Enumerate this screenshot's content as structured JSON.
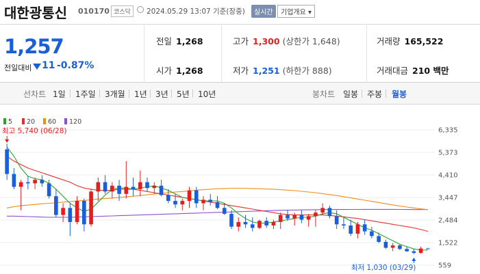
{
  "header": {
    "name": "대한광통신",
    "code": "010170",
    "market": "코스닥",
    "datetime": "2024.05.29 13:07 기준(장중)",
    "realtime": "실시간",
    "company_info": "기업개요 ▾"
  },
  "quote": {
    "price": "1,257",
    "change_label": "전일대비",
    "change_abs": "11",
    "change_pct": "-0.87%",
    "prev_close_label": "전일",
    "prev_close": "1,268",
    "open_label": "시가",
    "open": "1,268",
    "high_label": "고가",
    "high": "1,300",
    "high_sub": "(상한가 1,648)",
    "low_label": "저가",
    "low": "1,251",
    "low_sub": "(하한가 888)",
    "volume_label": "거래량",
    "volume": "165,522",
    "amount_label": "거래대금",
    "amount": "210 백만"
  },
  "tabs": {
    "line_label": "선차트",
    "line": [
      "1일",
      "1주일",
      "3개월",
      "1년",
      "3년",
      "5년",
      "10년"
    ],
    "candle_label": "봉차트",
    "candle": [
      "일봉",
      "주봉",
      "월봉"
    ],
    "active": "월봉"
  },
  "colors": {
    "up": "#e02020",
    "down": "#1a5fd8",
    "ma5": "#2ca02c",
    "ma20": "#e03030",
    "ma60": "#ef8c1e",
    "ma120": "#8c4fd0"
  },
  "chart_data": {
    "type": "candlestick",
    "legend": [
      {
        "name": "5",
        "color": "#2ca02c"
      },
      {
        "name": "20",
        "color": "#e03030"
      },
      {
        "name": "60",
        "color": "#ef8c1e"
      },
      {
        "name": "120",
        "color": "#8c4fd0"
      }
    ],
    "y_ticks": [
      "6,335",
      "5,373",
      "4,410",
      "3,447",
      "2,484",
      "1,522",
      "559"
    ],
    "ylim": [
      559,
      6335
    ],
    "annotation_high": "최고 5,740 (06/28)",
    "annotation_low": "최저 1,030 (03/29)",
    "candles": [
      [
        5500,
        5740,
        4200,
        4450
      ],
      [
        4450,
        4700,
        3800,
        3900
      ],
      [
        3900,
        4200,
        2900,
        4100
      ],
      [
        4100,
        4350,
        3800,
        4050
      ],
      [
        4050,
        4300,
        3800,
        4200
      ],
      [
        4200,
        4400,
        3900,
        4050
      ],
      [
        4050,
        4200,
        3400,
        3500
      ],
      [
        3500,
        3800,
        2600,
        2700
      ],
      [
        2700,
        3200,
        2400,
        3000
      ],
      [
        3000,
        3200,
        1800,
        2400
      ],
      [
        2400,
        3500,
        2300,
        3300
      ],
      [
        3300,
        3400,
        2000,
        2300
      ],
      [
        2300,
        3800,
        2200,
        3700
      ],
      [
        3700,
        4300,
        3300,
        4100
      ],
      [
        4100,
        4400,
        3600,
        3700
      ],
      [
        3700,
        4100,
        3400,
        3950
      ],
      [
        3950,
        4200,
        3300,
        3600
      ],
      [
        3600,
        5000,
        3400,
        3900
      ],
      [
        3900,
        4300,
        3500,
        3800
      ],
      [
        3800,
        4600,
        3500,
        4100
      ],
      [
        4100,
        4300,
        3700,
        3850
      ],
      [
        3850,
        4100,
        3600,
        3950
      ],
      [
        3950,
        4200,
        3500,
        3550
      ],
      [
        3550,
        3800,
        3200,
        3300
      ],
      [
        3300,
        3600,
        3000,
        3150
      ],
      [
        3150,
        3400,
        2900,
        3300
      ],
      [
        3300,
        3900,
        3000,
        3750
      ],
      [
        3750,
        3900,
        3000,
        3200
      ],
      [
        3200,
        3500,
        2900,
        3350
      ],
      [
        3350,
        3600,
        3100,
        3250
      ],
      [
        3250,
        3500,
        2950,
        3000
      ],
      [
        3000,
        3200,
        2700,
        2750
      ],
      [
        2750,
        2900,
        2100,
        2200
      ],
      [
        2200,
        2600,
        2000,
        2400
      ],
      [
        2400,
        2700,
        2150,
        2300
      ],
      [
        2300,
        2600,
        2000,
        2150
      ],
      [
        2150,
        2500,
        2100,
        2450
      ],
      [
        2450,
        2600,
        2150,
        2250
      ],
      [
        2250,
        2500,
        2100,
        2400
      ],
      [
        2400,
        2800,
        2100,
        2700
      ],
      [
        2700,
        2900,
        2450,
        2550
      ],
      [
        2550,
        2800,
        2250,
        2700
      ],
      [
        2700,
        2900,
        2350,
        2500
      ],
      [
        2500,
        2750,
        2200,
        2650
      ],
      [
        2650,
        2900,
        2200,
        2800
      ],
      [
        2800,
        3200,
        2700,
        3000
      ],
      [
        3000,
        3100,
        2550,
        2650
      ],
      [
        2650,
        2900,
        2100,
        2300
      ],
      [
        2300,
        2600,
        2100,
        2250
      ],
      [
        2250,
        2500,
        1800,
        1900
      ],
      [
        1900,
        2400,
        1700,
        2300
      ],
      [
        2300,
        2500,
        1850,
        2000
      ],
      [
        2000,
        2200,
        1700,
        1800
      ],
      [
        1800,
        1950,
        1500,
        1550
      ],
      [
        1550,
        1650,
        1250,
        1300
      ],
      [
        1300,
        1500,
        1150,
        1400
      ],
      [
        1400,
        1450,
        1200,
        1250
      ],
      [
        1250,
        1350,
        1120,
        1150
      ],
      [
        1150,
        1250,
        1030,
        1080
      ],
      [
        1080,
        1350,
        1050,
        1268
      ],
      [
        1268,
        1300,
        1251,
        1257
      ]
    ],
    "ma5": [
      5600,
      5200,
      4700,
      4350,
      4250,
      4200,
      4050,
      3800,
      3500,
      3200,
      3000,
      2850,
      2950,
      3250,
      3550,
      3800,
      3850,
      3850,
      3800,
      3850,
      3900,
      3950,
      3850,
      3750,
      3600,
      3450,
      3400,
      3350,
      3300,
      3300,
      3300,
      3200,
      3000,
      2750,
      2550,
      2400,
      2350,
      2350,
      2400,
      2450,
      2500,
      2550,
      2600,
      2600,
      2650,
      2750,
      2800,
      2750,
      2600,
      2450,
      2300,
      2150,
      2050,
      1900,
      1750,
      1600,
      1450,
      1350,
      1250,
      1200,
      1200
    ],
    "ma20": [
      5200,
      5000,
      4850,
      4700,
      4600,
      4500,
      4400,
      4300,
      4200,
      4100,
      3950,
      3850,
      3800,
      3750,
      3750,
      3750,
      3800,
      3800,
      3800,
      3750,
      3700,
      3650,
      3600,
      3550,
      3500,
      3450,
      3400,
      3350,
      3300,
      3250,
      3200,
      3150,
      3100,
      3050,
      3000,
      2950,
      2900,
      2850,
      2800,
      2750,
      2720,
      2700,
      2700,
      2700,
      2700,
      2700,
      2680,
      2650,
      2620,
      2580,
      2550,
      2500,
      2450,
      2400,
      2350,
      2300,
      2250,
      2200,
      2150,
      2080,
      2000
    ],
    "ma60": [
      3000,
      3050,
      3100,
      3120,
      3150,
      3180,
      3200,
      3220,
      3250,
      3270,
      3300,
      3320,
      3350,
      3380,
      3400,
      3420,
      3450,
      3480,
      3500,
      3530,
      3560,
      3590,
      3620,
      3650,
      3680,
      3700,
      3730,
      3760,
      3780,
      3800,
      3820,
      3830,
      3840,
      3840,
      3840,
      3830,
      3820,
      3810,
      3800,
      3780,
      3760,
      3740,
      3710,
      3680,
      3650,
      3610,
      3570,
      3530,
      3480,
      3430,
      3380,
      3330,
      3280,
      3230,
      3180,
      3130,
      3080,
      3040,
      3000,
      2960,
      2930
    ],
    "ma120": [
      2650,
      2650,
      2640,
      2630,
      2620,
      2610,
      2600,
      2600,
      2600,
      2600,
      2610,
      2620,
      2630,
      2640,
      2650,
      2660,
      2670,
      2680,
      2690,
      2700,
      2710,
      2720,
      2730,
      2740,
      2750,
      2760,
      2770,
      2780,
      2790,
      2800,
      2810,
      2820,
      2830,
      2840,
      2850,
      2860,
      2870,
      2880,
      2890,
      2900,
      2905,
      2910,
      2915,
      2920,
      2925,
      2930,
      2932,
      2934,
      2935,
      2936,
      2937,
      2938,
      2938,
      2938,
      2938,
      2938,
      2936,
      2934,
      2932,
      2930,
      2930
    ]
  }
}
